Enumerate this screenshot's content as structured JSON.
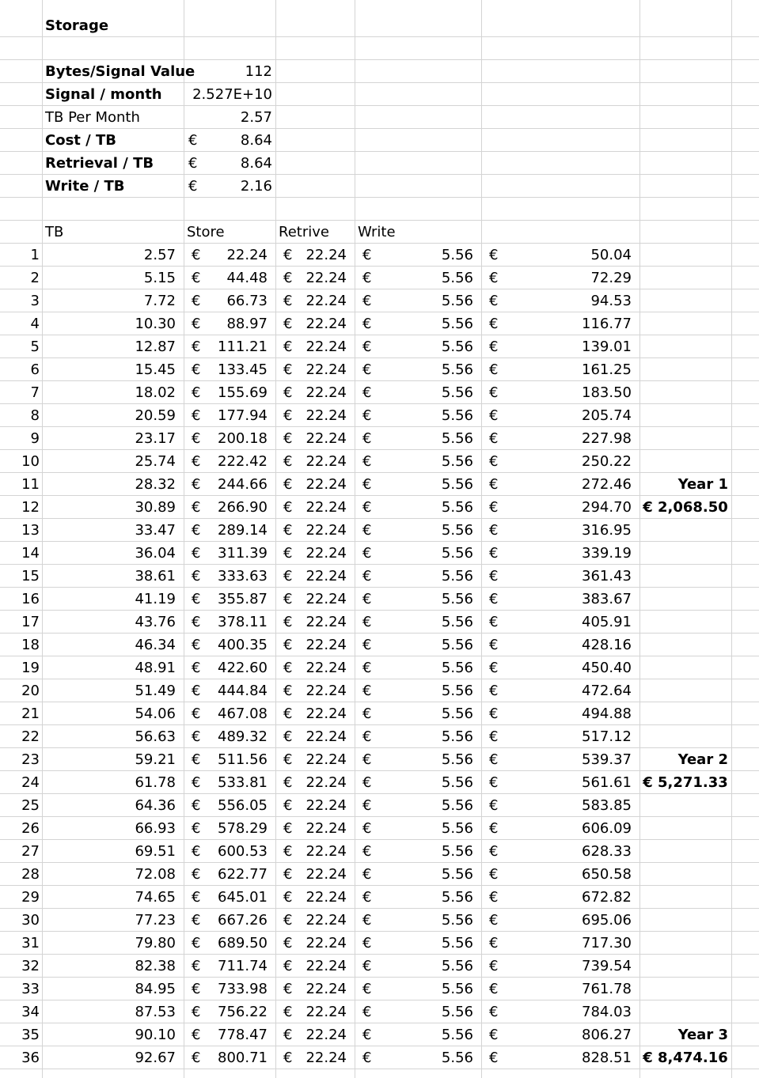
{
  "params": {
    "title": "Storage",
    "rows": [
      {
        "label": "Bytes/Signal Value",
        "bold": true,
        "cur": "",
        "val": "112"
      },
      {
        "label": "Signal / month",
        "bold": true,
        "cur": "",
        "val": "2.527E+10"
      },
      {
        "label": " TB Per Month",
        "bold": false,
        "cur": "",
        "val": "2.57"
      },
      {
        "label": "Cost / TB",
        "bold": true,
        "cur": "€",
        "val": "8.64"
      },
      {
        "label": "Retrieval / TB",
        "bold": true,
        "cur": "€",
        "val": "8.64"
      },
      {
        "label": "Write / TB",
        "bold": true,
        "cur": "€",
        "val": "2.16"
      }
    ]
  },
  "table": {
    "headers": {
      "tb": "TB",
      "store": "Store",
      "retrieve": "Retrive",
      "write": "Write"
    },
    "currency": "€",
    "rows": [
      {
        "n": "1",
        "tb": "2.57",
        "store": "22.24",
        "ret": "22.24",
        "write": "5.56",
        "total": "50.04"
      },
      {
        "n": "2",
        "tb": "5.15",
        "store": "44.48",
        "ret": "22.24",
        "write": "5.56",
        "total": "72.29"
      },
      {
        "n": "3",
        "tb": "7.72",
        "store": "66.73",
        "ret": "22.24",
        "write": "5.56",
        "total": "94.53"
      },
      {
        "n": "4",
        "tb": "10.30",
        "store": "88.97",
        "ret": "22.24",
        "write": "5.56",
        "total": "116.77"
      },
      {
        "n": "5",
        "tb": "12.87",
        "store": "111.21",
        "ret": "22.24",
        "write": "5.56",
        "total": "139.01"
      },
      {
        "n": "6",
        "tb": "15.45",
        "store": "133.45",
        "ret": "22.24",
        "write": "5.56",
        "total": "161.25"
      },
      {
        "n": "7",
        "tb": "18.02",
        "store": "155.69",
        "ret": "22.24",
        "write": "5.56",
        "total": "183.50"
      },
      {
        "n": "8",
        "tb": "20.59",
        "store": "177.94",
        "ret": "22.24",
        "write": "5.56",
        "total": "205.74"
      },
      {
        "n": "9",
        "tb": "23.17",
        "store": "200.18",
        "ret": "22.24",
        "write": "5.56",
        "total": "227.98"
      },
      {
        "n": "10",
        "tb": "25.74",
        "store": "222.42",
        "ret": "22.24",
        "write": "5.56",
        "total": "250.22"
      },
      {
        "n": "11",
        "tb": "28.32",
        "store": "244.66",
        "ret": "22.24",
        "write": "5.56",
        "total": "272.46",
        "note": "Year 1"
      },
      {
        "n": "12",
        "tb": "30.89",
        "store": "266.90",
        "ret": "22.24",
        "write": "5.56",
        "total": "294.70",
        "note": "€ 2,068.50"
      },
      {
        "n": "13",
        "tb": "33.47",
        "store": "289.14",
        "ret": "22.24",
        "write": "5.56",
        "total": "316.95"
      },
      {
        "n": "14",
        "tb": "36.04",
        "store": "311.39",
        "ret": "22.24",
        "write": "5.56",
        "total": "339.19"
      },
      {
        "n": "15",
        "tb": "38.61",
        "store": "333.63",
        "ret": "22.24",
        "write": "5.56",
        "total": "361.43"
      },
      {
        "n": "16",
        "tb": "41.19",
        "store": "355.87",
        "ret": "22.24",
        "write": "5.56",
        "total": "383.67"
      },
      {
        "n": "17",
        "tb": "43.76",
        "store": "378.11",
        "ret": "22.24",
        "write": "5.56",
        "total": "405.91"
      },
      {
        "n": "18",
        "tb": "46.34",
        "store": "400.35",
        "ret": "22.24",
        "write": "5.56",
        "total": "428.16"
      },
      {
        "n": "19",
        "tb": "48.91",
        "store": "422.60",
        "ret": "22.24",
        "write": "5.56",
        "total": "450.40"
      },
      {
        "n": "20",
        "tb": "51.49",
        "store": "444.84",
        "ret": "22.24",
        "write": "5.56",
        "total": "472.64"
      },
      {
        "n": "21",
        "tb": "54.06",
        "store": "467.08",
        "ret": "22.24",
        "write": "5.56",
        "total": "494.88"
      },
      {
        "n": "22",
        "tb": "56.63",
        "store": "489.32",
        "ret": "22.24",
        "write": "5.56",
        "total": "517.12"
      },
      {
        "n": "23",
        "tb": "59.21",
        "store": "511.56",
        "ret": "22.24",
        "write": "5.56",
        "total": "539.37",
        "note": "Year 2"
      },
      {
        "n": "24",
        "tb": "61.78",
        "store": "533.81",
        "ret": "22.24",
        "write": "5.56",
        "total": "561.61",
        "note": "€ 5,271.33"
      },
      {
        "n": "25",
        "tb": "64.36",
        "store": "556.05",
        "ret": "22.24",
        "write": "5.56",
        "total": "583.85"
      },
      {
        "n": "26",
        "tb": "66.93",
        "store": "578.29",
        "ret": "22.24",
        "write": "5.56",
        "total": "606.09"
      },
      {
        "n": "27",
        "tb": "69.51",
        "store": "600.53",
        "ret": "22.24",
        "write": "5.56",
        "total": "628.33"
      },
      {
        "n": "28",
        "tb": "72.08",
        "store": "622.77",
        "ret": "22.24",
        "write": "5.56",
        "total": "650.58"
      },
      {
        "n": "29",
        "tb": "74.65",
        "store": "645.01",
        "ret": "22.24",
        "write": "5.56",
        "total": "672.82"
      },
      {
        "n": "30",
        "tb": "77.23",
        "store": "667.26",
        "ret": "22.24",
        "write": "5.56",
        "total": "695.06"
      },
      {
        "n": "31",
        "tb": "79.80",
        "store": "689.50",
        "ret": "22.24",
        "write": "5.56",
        "total": "717.30"
      },
      {
        "n": "32",
        "tb": "82.38",
        "store": "711.74",
        "ret": "22.24",
        "write": "5.56",
        "total": "739.54"
      },
      {
        "n": "33",
        "tb": "84.95",
        "store": "733.98",
        "ret": "22.24",
        "write": "5.56",
        "total": "761.78"
      },
      {
        "n": "34",
        "tb": "87.53",
        "store": "756.22",
        "ret": "22.24",
        "write": "5.56",
        "total": "784.03"
      },
      {
        "n": "35",
        "tb": "90.10",
        "store": "778.47",
        "ret": "22.24",
        "write": "5.56",
        "total": "806.27",
        "note": "Year 3"
      },
      {
        "n": "36",
        "tb": "92.67",
        "store": "800.71",
        "ret": "22.24",
        "write": "5.56",
        "total": "828.51",
        "note": "€ 8,474.16"
      }
    ]
  }
}
